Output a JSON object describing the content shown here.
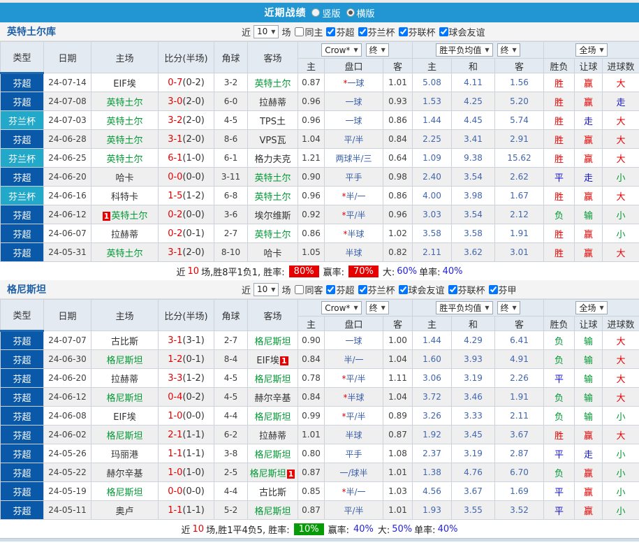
{
  "colors": {
    "accent_blue": "#2196d3",
    "league_super_bg": "#0a58a8",
    "league_cup_bg": "#22a8c8",
    "win_red": "#e60000",
    "draw_blue": "#1414cc",
    "lose_green": "#009933",
    "odds_blue": "#3a5fad"
  },
  "topbar": {
    "title": "近期战绩",
    "radios": [
      {
        "label": "竖版",
        "selected": false
      },
      {
        "label": "横版",
        "selected": true
      }
    ]
  },
  "shared": {
    "filter_near": "近",
    "filter_matches": "场",
    "header": {
      "type": "类型",
      "date": "日期",
      "home": "主场",
      "score": "比分(半场)",
      "corner": "角球",
      "away": "客场",
      "asia_select": "Crow*",
      "asia_final": "终",
      "asia_home": "主",
      "asia_hcap": "盘口",
      "asia_away": "客",
      "europe_select": "胜平负均值",
      "europe_final": "终",
      "europe_home": "主",
      "europe_draw": "和",
      "europe_away": "客",
      "scope_select": "全场",
      "result": "胜负",
      "handicap_result": "让球",
      "goals_result": "进球数"
    }
  },
  "sections": [
    {
      "team": "英特土尔库",
      "filter": {
        "count": "10",
        "checkboxes": [
          {
            "label": "同主",
            "checked": false
          },
          {
            "label": "芬超",
            "checked": true
          },
          {
            "label": "芬兰杯",
            "checked": true
          },
          {
            "label": "芬联杯",
            "checked": true
          },
          {
            "label": "球会友谊",
            "checked": true
          }
        ]
      },
      "rows": [
        {
          "league": "芬超",
          "league_type": "super",
          "date": "24-07-14",
          "home": "EIF埃",
          "home_green": false,
          "home_badge_pre": "",
          "score": "0-7",
          "half": "(0-2)",
          "corner": "3-2",
          "away": "英特土尔",
          "away_green": true,
          "away_badge_post": "",
          "h": "0.87",
          "hcap_star": true,
          "hcap": "一球",
          "a": "1.01",
          "eh": "5.08",
          "ed": "4.11",
          "ea": "1.56",
          "res": "胜",
          "res_c": "r",
          "hres": "赢",
          "hres_c": "r",
          "gres": "大",
          "gres_c": "r"
        },
        {
          "league": "芬超",
          "league_type": "super",
          "date": "24-07-08",
          "home": "英特土尔",
          "home_green": true,
          "home_badge_pre": "",
          "score": "3-0",
          "half": "(2-0)",
          "corner": "6-0",
          "away": "拉赫蒂",
          "away_green": false,
          "away_badge_post": "",
          "h": "0.96",
          "hcap_star": false,
          "hcap": "一球",
          "a": "0.93",
          "eh": "1.53",
          "ed": "4.25",
          "ea": "5.20",
          "res": "胜",
          "res_c": "r",
          "hres": "赢",
          "hres_c": "r",
          "gres": "走",
          "gres_c": "b"
        },
        {
          "league": "芬兰杯",
          "league_type": "cup",
          "date": "24-07-03",
          "home": "英特土尔",
          "home_green": true,
          "home_badge_pre": "",
          "score": "3-2",
          "half": "(2-0)",
          "corner": "4-5",
          "away": "TPS土",
          "away_green": false,
          "away_badge_post": "",
          "h": "0.96",
          "hcap_star": false,
          "hcap": "一球",
          "a": "0.86",
          "eh": "1.44",
          "ed": "4.45",
          "ea": "5.74",
          "res": "胜",
          "res_c": "r",
          "hres": "走",
          "hres_c": "b",
          "gres": "大",
          "gres_c": "r"
        },
        {
          "league": "芬超",
          "league_type": "super",
          "date": "24-06-28",
          "home": "英特土尔",
          "home_green": true,
          "home_badge_pre": "",
          "score": "3-1",
          "half": "(2-0)",
          "corner": "8-6",
          "away": "VPS瓦",
          "away_green": false,
          "away_badge_post": "",
          "h": "1.04",
          "hcap_star": false,
          "hcap": "平/半",
          "a": "0.84",
          "eh": "2.25",
          "ed": "3.41",
          "ea": "2.91",
          "res": "胜",
          "res_c": "r",
          "hres": "赢",
          "hres_c": "r",
          "gres": "大",
          "gres_c": "r"
        },
        {
          "league": "芬兰杯",
          "league_type": "cup",
          "date": "24-06-25",
          "home": "英特土尔",
          "home_green": true,
          "home_badge_pre": "",
          "score": "6-1",
          "half": "(1-0)",
          "corner": "6-1",
          "away": "格力夫克",
          "away_green": false,
          "away_badge_post": "",
          "h": "1.21",
          "hcap_star": false,
          "hcap": "两球半/三",
          "a": "0.64",
          "eh": "1.09",
          "ed": "9.38",
          "ea": "15.62",
          "res": "胜",
          "res_c": "r",
          "hres": "赢",
          "hres_c": "r",
          "gres": "大",
          "gres_c": "r"
        },
        {
          "league": "芬超",
          "league_type": "super",
          "date": "24-06-20",
          "home": "哈卡",
          "home_green": false,
          "home_badge_pre": "",
          "score": "0-0",
          "half": "(0-0)",
          "corner": "3-11",
          "away": "英特土尔",
          "away_green": true,
          "away_badge_post": "",
          "h": "0.90",
          "hcap_star": false,
          "hcap": "平手",
          "a": "0.98",
          "eh": "2.40",
          "ed": "3.54",
          "ea": "2.62",
          "res": "平",
          "res_c": "b",
          "hres": "走",
          "hres_c": "b",
          "gres": "小",
          "gres_c": "g"
        },
        {
          "league": "芬兰杯",
          "league_type": "cup",
          "date": "24-06-16",
          "home": "科特卡",
          "home_green": false,
          "home_badge_pre": "",
          "score": "1-5",
          "half": "(1-2)",
          "corner": "6-8",
          "away": "英特土尔",
          "away_green": true,
          "away_badge_post": "",
          "h": "0.96",
          "hcap_star": true,
          "hcap": "半/一",
          "a": "0.86",
          "eh": "4.00",
          "ed": "3.98",
          "ea": "1.67",
          "res": "胜",
          "res_c": "r",
          "hres": "赢",
          "hres_c": "r",
          "gres": "大",
          "gres_c": "r"
        },
        {
          "league": "芬超",
          "league_type": "super",
          "date": "24-06-12",
          "home": "英特土尔",
          "home_green": true,
          "home_badge_pre": "1",
          "score": "0-2",
          "half": "(0-0)",
          "corner": "3-6",
          "away": "埃尔维斯",
          "away_green": false,
          "away_badge_post": "",
          "h": "0.92",
          "hcap_star": true,
          "hcap": "平/半",
          "a": "0.96",
          "eh": "3.03",
          "ed": "3.54",
          "ea": "2.12",
          "res": "负",
          "res_c": "g",
          "hres": "输",
          "hres_c": "g",
          "gres": "小",
          "gres_c": "g"
        },
        {
          "league": "芬超",
          "league_type": "super",
          "date": "24-06-07",
          "home": "拉赫蒂",
          "home_green": false,
          "home_badge_pre": "",
          "score": "0-2",
          "half": "(0-1)",
          "corner": "2-7",
          "away": "英特土尔",
          "away_green": true,
          "away_badge_post": "",
          "h": "0.86",
          "hcap_star": true,
          "hcap": "半球",
          "a": "1.02",
          "eh": "3.58",
          "ed": "3.58",
          "ea": "1.91",
          "res": "胜",
          "res_c": "r",
          "hres": "赢",
          "hres_c": "r",
          "gres": "小",
          "gres_c": "g"
        },
        {
          "league": "芬超",
          "league_type": "super",
          "date": "24-05-31",
          "home": "英特土尔",
          "home_green": true,
          "home_badge_pre": "",
          "score": "3-1",
          "half": "(2-0)",
          "corner": "8-10",
          "away": "哈卡",
          "away_green": false,
          "away_badge_post": "",
          "h": "1.05",
          "hcap_star": false,
          "hcap": "半球",
          "a": "0.82",
          "eh": "2.11",
          "ed": "3.62",
          "ea": "3.01",
          "res": "胜",
          "res_c": "r",
          "hres": "赢",
          "hres_c": "r",
          "gres": "大",
          "gres_c": "r"
        }
      ],
      "footer": {
        "near": "近",
        "count": "10",
        "summary": "场,胜8平1负1, 胜率:",
        "winrate": "80%",
        "winrate_style": "badge-red",
        "label2": "赢率:",
        "rate2": "70%",
        "rate2_style": "badge-red",
        "label3": "大:",
        "big": "60%",
        "label4": "单率:",
        "single": "40%"
      }
    },
    {
      "team": "格尼斯坦",
      "filter": {
        "count": "10",
        "checkboxes": [
          {
            "label": "同客",
            "checked": false
          },
          {
            "label": "芬超",
            "checked": true
          },
          {
            "label": "芬兰杯",
            "checked": true
          },
          {
            "label": "球会友谊",
            "checked": true
          },
          {
            "label": "芬联杯",
            "checked": true
          },
          {
            "label": "芬甲",
            "checked": true
          }
        ]
      },
      "rows": [
        {
          "league": "芬超",
          "league_type": "super",
          "date": "24-07-07",
          "home": "古比斯",
          "home_green": false,
          "home_badge_pre": "",
          "score": "3-1",
          "half": "(3-1)",
          "corner": "2-7",
          "away": "格尼斯坦",
          "away_green": true,
          "away_badge_post": "",
          "h": "0.90",
          "hcap_star": false,
          "hcap": "一球",
          "a": "1.00",
          "eh": "1.44",
          "ed": "4.29",
          "ea": "6.41",
          "res": "负",
          "res_c": "g",
          "hres": "输",
          "hres_c": "g",
          "gres": "大",
          "gres_c": "r"
        },
        {
          "league": "芬超",
          "league_type": "super",
          "date": "24-06-30",
          "home": "格尼斯坦",
          "home_green": true,
          "home_badge_pre": "",
          "score": "1-2",
          "half": "(0-1)",
          "corner": "8-4",
          "away": "EIF埃",
          "away_green": false,
          "away_badge_post": "1",
          "h": "0.84",
          "hcap_star": false,
          "hcap": "半/一",
          "a": "1.04",
          "eh": "1.60",
          "ed": "3.93",
          "ea": "4.91",
          "res": "负",
          "res_c": "g",
          "hres": "输",
          "hres_c": "g",
          "gres": "大",
          "gres_c": "r"
        },
        {
          "league": "芬超",
          "league_type": "super",
          "date": "24-06-20",
          "home": "拉赫蒂",
          "home_green": false,
          "home_badge_pre": "",
          "score": "3-3",
          "half": "(1-2)",
          "corner": "4-5",
          "away": "格尼斯坦",
          "away_green": true,
          "away_badge_post": "",
          "h": "0.78",
          "hcap_star": true,
          "hcap": "平/半",
          "a": "1.11",
          "eh": "3.06",
          "ed": "3.19",
          "ea": "2.26",
          "res": "平",
          "res_c": "b",
          "hres": "输",
          "hres_c": "g",
          "gres": "大",
          "gres_c": "r"
        },
        {
          "league": "芬超",
          "league_type": "super",
          "date": "24-06-12",
          "home": "格尼斯坦",
          "home_green": true,
          "home_badge_pre": "",
          "score": "0-4",
          "half": "(0-2)",
          "corner": "4-5",
          "away": "赫尔辛基",
          "away_green": false,
          "away_badge_post": "",
          "h": "0.84",
          "hcap_star": true,
          "hcap": "半球",
          "a": "1.04",
          "eh": "3.72",
          "ed": "3.46",
          "ea": "1.91",
          "res": "负",
          "res_c": "g",
          "hres": "输",
          "hres_c": "g",
          "gres": "大",
          "gres_c": "r"
        },
        {
          "league": "芬超",
          "league_type": "super",
          "date": "24-06-08",
          "home": "EIF埃",
          "home_green": false,
          "home_badge_pre": "",
          "score": "1-0",
          "half": "(0-0)",
          "corner": "4-4",
          "away": "格尼斯坦",
          "away_green": true,
          "away_badge_post": "",
          "h": "0.99",
          "hcap_star": true,
          "hcap": "平/半",
          "a": "0.89",
          "eh": "3.26",
          "ed": "3.33",
          "ea": "2.11",
          "res": "负",
          "res_c": "g",
          "hres": "输",
          "hres_c": "g",
          "gres": "小",
          "gres_c": "g"
        },
        {
          "league": "芬超",
          "league_type": "super",
          "date": "24-06-02",
          "home": "格尼斯坦",
          "home_green": true,
          "home_badge_pre": "",
          "score": "2-1",
          "half": "(1-1)",
          "corner": "6-2",
          "away": "拉赫蒂",
          "away_green": false,
          "away_badge_post": "",
          "h": "1.01",
          "hcap_star": false,
          "hcap": "半球",
          "a": "0.87",
          "eh": "1.92",
          "ed": "3.45",
          "ea": "3.67",
          "res": "胜",
          "res_c": "r",
          "hres": "赢",
          "hres_c": "r",
          "gres": "大",
          "gres_c": "r"
        },
        {
          "league": "芬超",
          "league_type": "super",
          "date": "24-05-26",
          "home": "玛丽港",
          "home_green": false,
          "home_badge_pre": "",
          "score": "1-1",
          "half": "(1-1)",
          "corner": "3-8",
          "away": "格尼斯坦",
          "away_green": true,
          "away_badge_post": "",
          "h": "0.80",
          "hcap_star": false,
          "hcap": "平手",
          "a": "1.08",
          "eh": "2.37",
          "ed": "3.19",
          "ea": "2.87",
          "res": "平",
          "res_c": "b",
          "hres": "走",
          "hres_c": "b",
          "gres": "小",
          "gres_c": "g"
        },
        {
          "league": "芬超",
          "league_type": "super",
          "date": "24-05-22",
          "home": "赫尔辛基",
          "home_green": false,
          "home_badge_pre": "",
          "score": "1-0",
          "half": "(1-0)",
          "corner": "2-5",
          "away": "格尼斯坦",
          "away_green": true,
          "away_badge_post": "1",
          "h": "0.87",
          "hcap_star": false,
          "hcap": "一/球半",
          "a": "1.01",
          "eh": "1.38",
          "ed": "4.76",
          "ea": "6.70",
          "res": "负",
          "res_c": "g",
          "hres": "赢",
          "hres_c": "r",
          "gres": "小",
          "gres_c": "g"
        },
        {
          "league": "芬超",
          "league_type": "super",
          "date": "24-05-19",
          "home": "格尼斯坦",
          "home_green": true,
          "home_badge_pre": "",
          "score": "0-0",
          "half": "(0-0)",
          "corner": "4-4",
          "away": "古比斯",
          "away_green": false,
          "away_badge_post": "",
          "h": "0.85",
          "hcap_star": true,
          "hcap": "半/一",
          "a": "1.03",
          "eh": "4.56",
          "ed": "3.67",
          "ea": "1.69",
          "res": "平",
          "res_c": "b",
          "hres": "赢",
          "hres_c": "r",
          "gres": "小",
          "gres_c": "g"
        },
        {
          "league": "芬超",
          "league_type": "super",
          "date": "24-05-11",
          "home": "奥卢",
          "home_green": false,
          "home_badge_pre": "",
          "score": "1-1",
          "half": "(1-1)",
          "corner": "5-2",
          "away": "格尼斯坦",
          "away_green": true,
          "away_badge_post": "",
          "h": "0.87",
          "hcap_star": false,
          "hcap": "平/半",
          "a": "1.01",
          "eh": "1.93",
          "ed": "3.55",
          "ea": "3.52",
          "res": "平",
          "res_c": "b",
          "hres": "赢",
          "hres_c": "r",
          "gres": "小",
          "gres_c": "g"
        }
      ],
      "footer": {
        "near": "近",
        "count": "10",
        "summary": "场,胜1平4负5, 胜率:",
        "winrate": "10%",
        "winrate_style": "badge-green",
        "label2": "赢率:",
        "rate2": "40%",
        "rate2_style": "plain",
        "label3": "大:",
        "big": "50%",
        "label4": "单率:",
        "single": "40%"
      }
    }
  ]
}
